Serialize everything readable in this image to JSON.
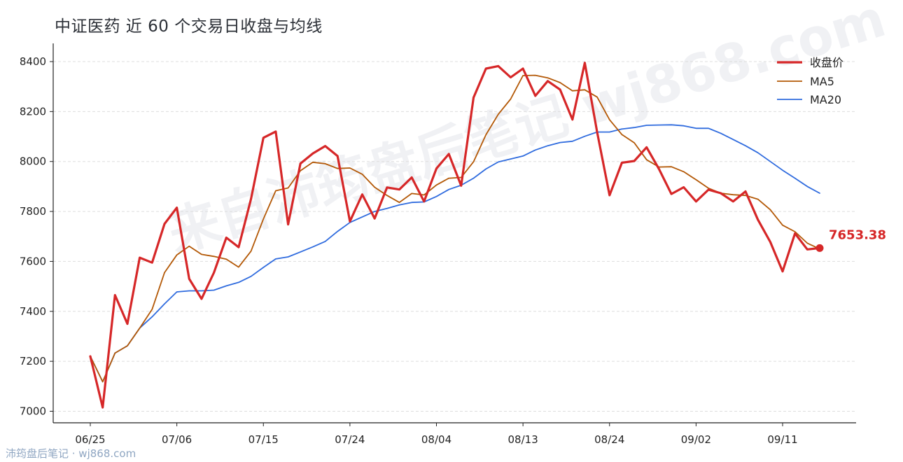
{
  "title": "中证医药 近 60 个交易日收盘与均线",
  "footer": "沛筠盘后笔记 · wj868.com",
  "watermark": "来自沛筠盘后笔记 wj868.com",
  "last_value_label": "7653.38",
  "colors": {
    "close": "#d62728",
    "ma5": "#b35806",
    "ma20": "#2f6bde",
    "grid": "#dddddd"
  },
  "chart_data": {
    "type": "line",
    "title": "中证医药 近 60 个交易日收盘与均线",
    "xlabel": "",
    "ylabel": "",
    "ylim": [
      6950,
      8450
    ],
    "yticks": [
      7000,
      7200,
      7400,
      7600,
      7800,
      8000,
      8200,
      8400
    ],
    "xtick_labels": [
      "06/25",
      "07/06",
      "07/15",
      "07/24",
      "08/04",
      "08/13",
      "08/24",
      "09/02",
      "09/11"
    ],
    "xtick_indices": [
      0,
      7,
      14,
      21,
      28,
      35,
      42,
      49,
      56
    ],
    "grid": true,
    "legend_position": "top-right",
    "series": [
      {
        "name": "收盘价",
        "values": [
          7220,
          7015,
          7465,
          7350,
          7615,
          7595,
          7750,
          7815,
          7530,
          7450,
          7555,
          7695,
          7657,
          7850,
          8095,
          8120,
          7748,
          7992,
          8032,
          8062,
          8022,
          7760,
          7868,
          7772,
          7896,
          7888,
          7936,
          7840,
          7972,
          8030,
          7903,
          8256,
          8372,
          8382,
          8337,
          8372,
          8263,
          8322,
          8288,
          8168,
          8395,
          8117,
          7865,
          7995,
          8002,
          8057,
          7970,
          7870,
          7897,
          7840,
          7887,
          7873,
          7840,
          7880,
          7767,
          7678,
          7560,
          7712,
          7648,
          7653.38
        ]
      },
      {
        "name": "MA5",
        "values": [
          7220,
          7118,
          7233,
          7262,
          7333,
          7408,
          7555,
          7626,
          7661,
          7628,
          7620,
          7609,
          7577,
          7641,
          7770,
          7883,
          7894,
          7963,
          7997,
          7991,
          7972,
          7974,
          7949,
          7897,
          7864,
          7836,
          7872,
          7866,
          7906,
          7933,
          7936,
          7999,
          8107,
          8189,
          8250,
          8344,
          8345,
          8335,
          8316,
          8283,
          8287,
          8258,
          8167,
          8108,
          8075,
          8007,
          7978,
          7979,
          7959,
          7927,
          7893,
          7873,
          7867,
          7864,
          7849,
          7807,
          7745,
          7719,
          7673,
          7650
        ]
      },
      {
        "name": "MA20",
        "values": [
          7220,
          7118,
          7233,
          7262,
          7333,
          7378,
          7430,
          7478,
          7482,
          7482,
          7485,
          7502,
          7516,
          7540,
          7576,
          7610,
          7618,
          7638,
          7658,
          7680,
          7720,
          7756,
          7778,
          7800,
          7812,
          7826,
          7836,
          7838,
          7860,
          7888,
          7905,
          7933,
          7970,
          7998,
          8010,
          8022,
          8046,
          8063,
          8076,
          8081,
          8101,
          8118,
          8118,
          8130,
          8136,
          8145,
          8146,
          8147,
          8143,
          8133,
          8133,
          8113,
          8088,
          8063,
          8035,
          8000,
          7965,
          7933,
          7900,
          7873
        ]
      }
    ]
  }
}
